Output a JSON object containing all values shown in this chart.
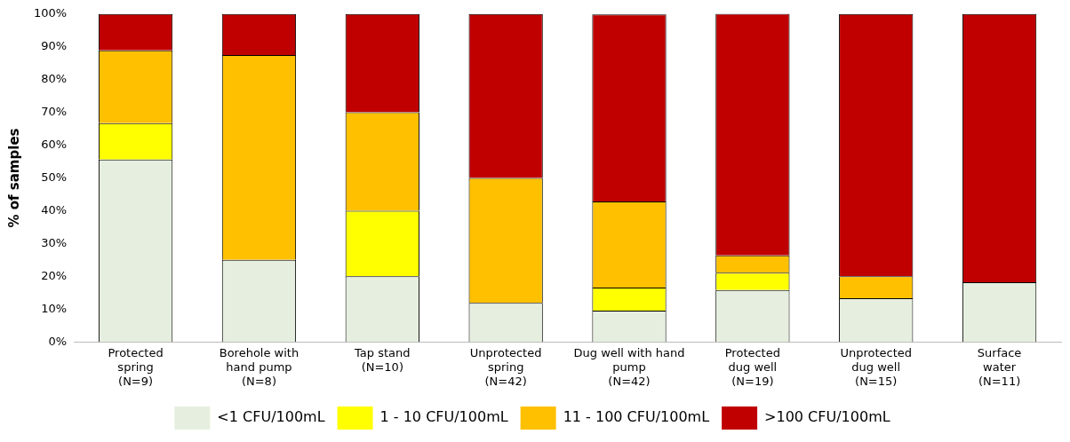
{
  "chart_data": {
    "type": "bar",
    "stacked": true,
    "ylabel": "% of samples",
    "categories": [
      "Protected\nspring\n(N=9)",
      "Borehole with\nhand pump\n(N=8)",
      "Tap stand\n(N=10)",
      "Unprotected\nspring\n(N=42)",
      "Dug well with hand\npump\n(N=42)",
      "Protected\ndug well\n(N=19)",
      "Unprotected\ndug well\n(N=15)",
      "Surface\nwater\n(N=11)"
    ],
    "series": [
      {
        "name": "<1 CFU/100mL",
        "color": "#e6efdf",
        "values": [
          55.6,
          25,
          20,
          11.9,
          9.5,
          15.8,
          13.3,
          18.2
        ]
      },
      {
        "name": "1 - 10 CFU/100mL",
        "color": "#ffff00",
        "values": [
          11.1,
          0,
          20,
          0,
          7.1,
          5.3,
          0,
          0
        ]
      },
      {
        "name": "11 - 100 CFU/100mL",
        "color": "#ffc000",
        "values": [
          22.2,
          62.5,
          30,
          38.1,
          26.2,
          5.3,
          6.7,
          0
        ]
      },
      {
        "name": ">100 CFU/100mL",
        "color": "#c00000",
        "values": [
          11.1,
          12.5,
          30,
          50,
          57.1,
          73.7,
          80,
          81.8
        ]
      }
    ],
    "ylim": [
      0,
      100
    ],
    "yticks": [
      {
        "value": 0,
        "label": "0%"
      },
      {
        "value": 10,
        "label": "10%"
      },
      {
        "value": 20,
        "label": "20%"
      },
      {
        "value": 30,
        "label": "30%"
      },
      {
        "value": 40,
        "label": "40%"
      },
      {
        "value": 50,
        "label": "50%"
      },
      {
        "value": 60,
        "label": "60%"
      },
      {
        "value": 70,
        "label": "70%"
      },
      {
        "value": 80,
        "label": "80%"
      },
      {
        "value": 90,
        "label": "90%"
      },
      {
        "value": 100,
        "label": "100%"
      }
    ],
    "grid": false,
    "legend": "bottom"
  }
}
